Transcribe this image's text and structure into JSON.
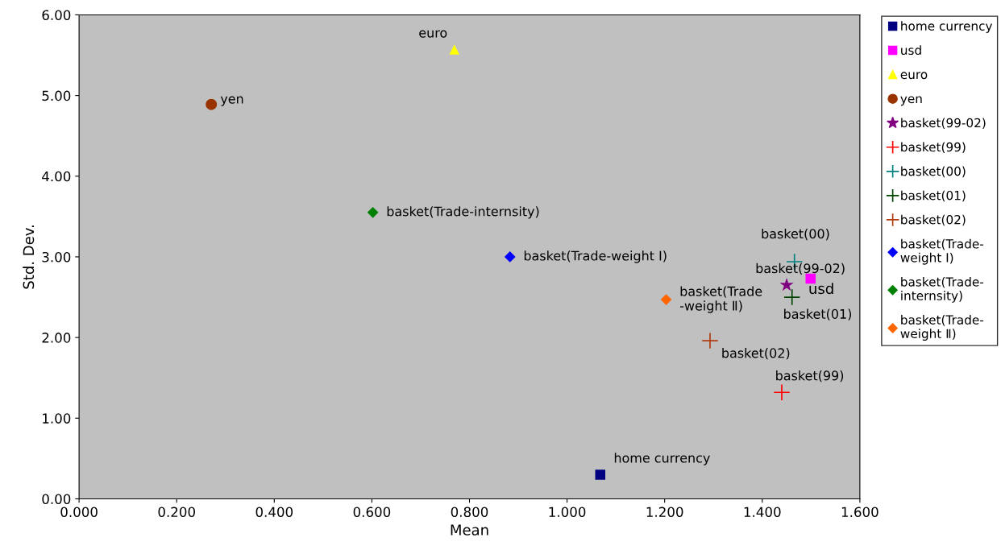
{
  "chart_data": {
    "type": "scatter",
    "xlabel": "Mean",
    "ylabel": "Std. Dev.",
    "xlim": [
      0,
      1.6
    ],
    "ylim": [
      0,
      6
    ],
    "xticks": [
      {
        "value": 0,
        "label": "0.000"
      },
      {
        "value": 0.2,
        "label": "0.200"
      },
      {
        "value": 0.4,
        "label": "0.400"
      },
      {
        "value": 0.6,
        "label": "0.600"
      },
      {
        "value": 0.8,
        "label": "0.800"
      },
      {
        "value": 1.0,
        "label": "1.000"
      },
      {
        "value": 1.2,
        "label": "1.200"
      },
      {
        "value": 1.4,
        "label": "1.400"
      },
      {
        "value": 1.6,
        "label": "1.600"
      }
    ],
    "yticks": [
      {
        "value": 0,
        "label": "0.00"
      },
      {
        "value": 1,
        "label": "1.00"
      },
      {
        "value": 2,
        "label": "2.00"
      },
      {
        "value": 3,
        "label": "3.00"
      },
      {
        "value": 4,
        "label": "4.00"
      },
      {
        "value": 5,
        "label": "5.00"
      },
      {
        "value": 6,
        "label": "6.00"
      }
    ],
    "grid": false,
    "legend": "right",
    "series": [
      {
        "name": "home currency",
        "color": "#000080",
        "marker": "square",
        "x": [
          1.068
        ],
        "values": [
          0.3
        ]
      },
      {
        "name": "usd",
        "color": "#ff00ff",
        "marker": "square",
        "x": [
          1.499
        ],
        "values": [
          2.73
        ]
      },
      {
        "name": "euro",
        "color": "#ffff00",
        "marker": "triangle",
        "x": [
          0.769
        ],
        "values": [
          5.57
        ]
      },
      {
        "name": "yen",
        "color": "#993300",
        "marker": "circle",
        "x": [
          0.271
        ],
        "values": [
          4.89
        ]
      },
      {
        "name": "basket(99-02)",
        "color": "#800080",
        "marker": "star",
        "x": [
          1.45
        ],
        "values": [
          2.65
        ]
      },
      {
        "name": "basket(99)",
        "color": "#ff0000",
        "marker": "cross",
        "x": [
          1.44
        ],
        "values": [
          1.32
        ]
      },
      {
        "name": "basket(00)",
        "color": "#008080",
        "marker": "cross",
        "x": [
          1.466
        ],
        "values": [
          2.94
        ]
      },
      {
        "name": "basket(01)",
        "color": "#004400",
        "marker": "cross",
        "x": [
          1.461
        ],
        "values": [
          2.5
        ]
      },
      {
        "name": "basket(02)",
        "color": "#b03c10",
        "marker": "cross",
        "x": [
          1.293
        ],
        "values": [
          1.96
        ]
      },
      {
        "name": "basket(Trade-\nweight I)",
        "color": "#0000ff",
        "marker": "diamond",
        "x": [
          0.883
        ],
        "values": [
          3.0
        ]
      },
      {
        "name": "basket(Trade-\ninternsity)",
        "color": "#008000",
        "marker": "diamond",
        "x": [
          0.602
        ],
        "values": [
          3.55
        ]
      },
      {
        "name": "basket(Trade-\nweight Ⅱ)",
        "color": "#ff6600",
        "marker": "diamond",
        "x": [
          1.203
        ],
        "values": [
          2.47
        ]
      }
    ],
    "annotations": [
      {
        "text": "home currency",
        "x": 1.068,
        "y": 0.3
      },
      {
        "text": "usd",
        "x": 1.499,
        "y": 2.73
      },
      {
        "text": "euro",
        "x": 0.769,
        "y": 5.57
      },
      {
        "text": "yen",
        "x": 0.271,
        "y": 4.89
      },
      {
        "text": "basket(99-02)",
        "x": 1.45,
        "y": 2.65
      },
      {
        "text": "basket(99)",
        "x": 1.44,
        "y": 1.32
      },
      {
        "text": "basket(00)",
        "x": 1.466,
        "y": 2.94
      },
      {
        "text": "basket(01)",
        "x": 1.461,
        "y": 2.5
      },
      {
        "text": "basket(02)",
        "x": 1.293,
        "y": 1.96
      },
      {
        "text": "basket(Trade-weight I)",
        "x": 0.883,
        "y": 3.0
      },
      {
        "text": "basket(Trade-internsity)",
        "x": 0.602,
        "y": 3.55
      },
      {
        "text": "basket(Trade\n-weight Ⅱ)",
        "x": 1.203,
        "y": 2.47
      }
    ]
  }
}
